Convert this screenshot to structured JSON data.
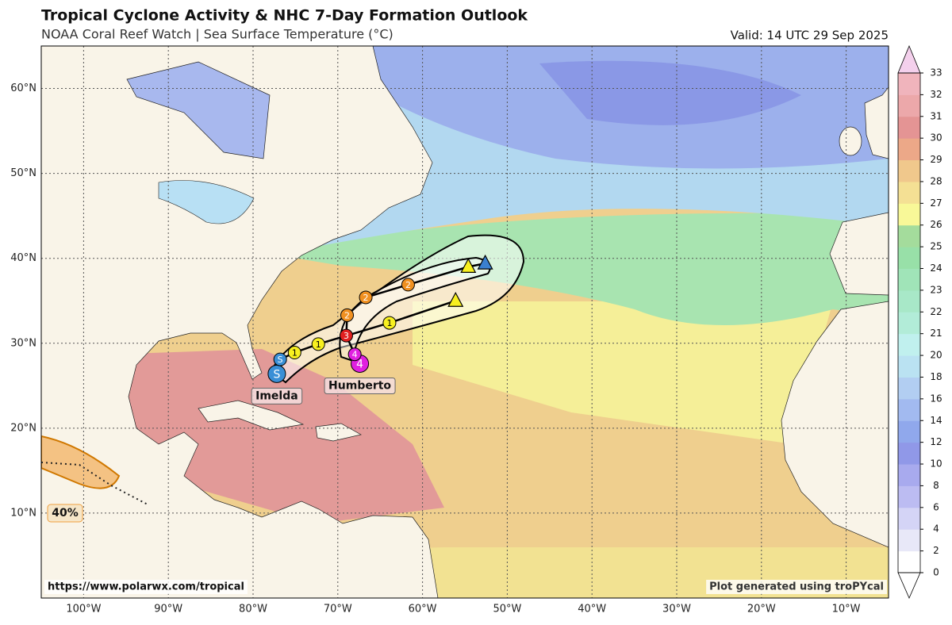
{
  "header": {
    "title": "Tropical Cyclone Activity & NHC 7-Day Formation Outlook",
    "subtitle": "NOAA Coral Reef Watch | Sea Surface Temperature (°C)",
    "valid": "Valid: 14 UTC 29 Sep 2025"
  },
  "map": {
    "xlim": [
      -105,
      -5
    ],
    "ylim": [
      0,
      65
    ],
    "xticks": [
      {
        "value": -100,
        "label": "100°W"
      },
      {
        "value": -90,
        "label": "90°W"
      },
      {
        "value": -80,
        "label": "80°W"
      },
      {
        "value": -70,
        "label": "70°W"
      },
      {
        "value": -60,
        "label": "60°W"
      },
      {
        "value": -50,
        "label": "50°W"
      },
      {
        "value": -40,
        "label": "40°W"
      },
      {
        "value": -30,
        "label": "30°W"
      },
      {
        "value": -20,
        "label": "20°W"
      },
      {
        "value": -10,
        "label": "10°W"
      }
    ],
    "yticks": [
      {
        "value": 10,
        "label": "10°N"
      },
      {
        "value": 20,
        "label": "20°N"
      },
      {
        "value": 30,
        "label": "30°N"
      },
      {
        "value": 40,
        "label": "40°N"
      },
      {
        "value": 50,
        "label": "50°N"
      },
      {
        "value": 60,
        "label": "60°N"
      }
    ],
    "grid": true,
    "storms": [
      {
        "name": "Imelda",
        "points": [
          {
            "lon": -77.2,
            "lat": 26.4,
            "label": "S",
            "color": "#3a8fd6"
          },
          {
            "lon": -76.8,
            "lat": 28.1,
            "label": "S",
            "color": "#3a8fd6"
          },
          {
            "lon": -75.1,
            "lat": 28.9,
            "label": "1",
            "color": "#f8f020"
          },
          {
            "lon": -72.3,
            "lat": 29.9,
            "label": "1",
            "color": "#f8f020"
          },
          {
            "lon": -63.9,
            "lat": 32.4,
            "label": "1",
            "color": "#f8f020"
          },
          {
            "lon": -56.1,
            "lat": 35.0,
            "symbol": "triangle",
            "color": "#f8f020"
          }
        ]
      },
      {
        "name": "Humberto",
        "points": [
          {
            "lon": -67.4,
            "lat": 27.6,
            "label": "4",
            "color": "#e020e0"
          },
          {
            "lon": -68.0,
            "lat": 28.7,
            "label": "4",
            "color": "#e020e0"
          },
          {
            "lon": -69.0,
            "lat": 30.9,
            "label": "3",
            "color": "#e02020"
          },
          {
            "lon": -68.9,
            "lat": 33.3,
            "label": "2",
            "color": "#f09020"
          },
          {
            "lon": -66.7,
            "lat": 35.4,
            "label": "2",
            "color": "#f09020"
          },
          {
            "lon": -61.7,
            "lat": 36.9,
            "label": "2",
            "color": "#f09020"
          },
          {
            "lon": -54.6,
            "lat": 39.0,
            "symbol": "triangle",
            "color": "#f8f020"
          },
          {
            "lon": -52.6,
            "lat": 39.4,
            "symbol": "triangle",
            "color": "#3a80d0"
          }
        ]
      }
    ],
    "outlook": {
      "label": "40%",
      "color": "#f0a040"
    }
  },
  "colorbar": {
    "ticks": [
      0,
      2,
      4,
      6,
      8,
      10,
      12,
      14,
      16,
      18,
      20,
      21,
      22,
      23,
      24,
      25,
      26,
      27,
      28,
      29,
      30,
      31,
      32,
      33
    ],
    "colors": [
      "#ffffff",
      "#e8e8f8",
      "#d4d4f6",
      "#bcbcf2",
      "#a8aaee",
      "#9098e8",
      "#90a8ec",
      "#a2baf0",
      "#b2cef2",
      "#bae2f2",
      "#c0f0ee",
      "#b2ecd8",
      "#a8e8c8",
      "#a0e4b8",
      "#98e0a8",
      "#a4dc9c",
      "#f8f898",
      "#f4e094",
      "#f0c88c",
      "#eca888",
      "#e49494",
      "#eca8aa",
      "#f0b4bc"
    ],
    "under": "#ffffff",
    "over": "#f4d0ec"
  },
  "footer": {
    "left": "https://www.polarwx.com/tropical",
    "right": "Plot generated using troPYcal"
  }
}
